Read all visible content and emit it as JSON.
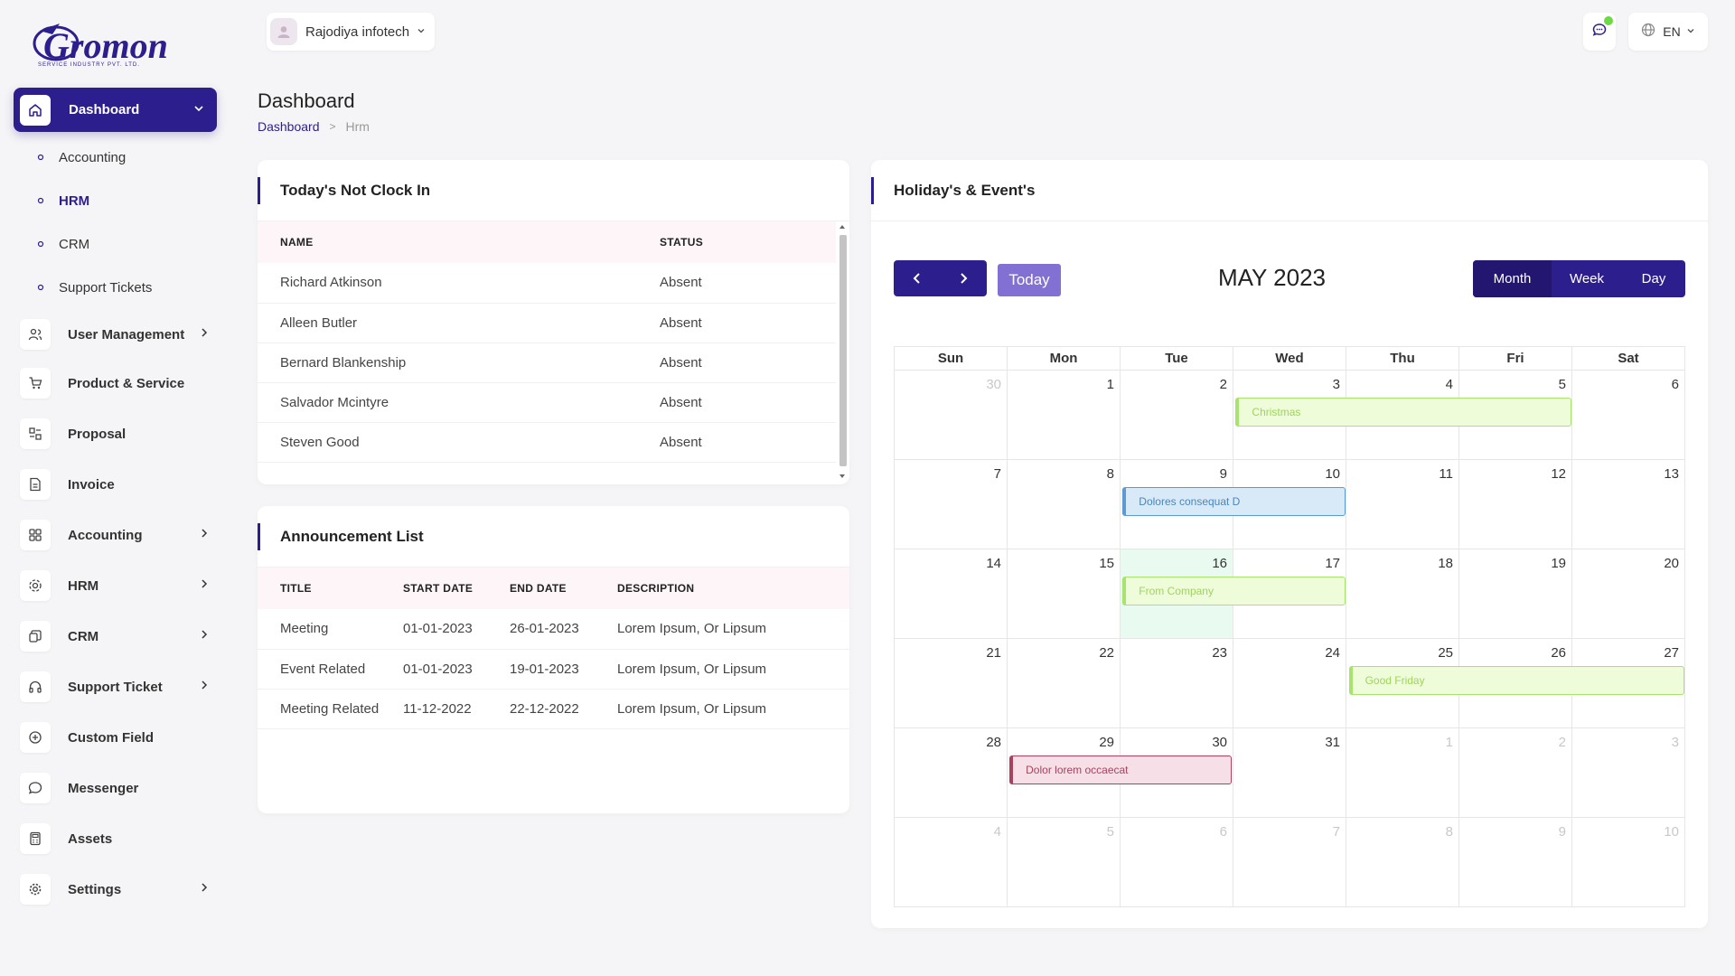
{
  "brand": {
    "logo_text": "Gromon",
    "logo_tagline": "SERVICE INDUSTRY PVT. LTD."
  },
  "header": {
    "company": "Rajodiya infotech",
    "language": "EN"
  },
  "sidebar": {
    "main": {
      "label": "Dashboard"
    },
    "sub_items": [
      {
        "label": "Accounting"
      },
      {
        "label": "HRM"
      },
      {
        "label": "CRM"
      },
      {
        "label": "Support Tickets"
      }
    ],
    "items": [
      {
        "label": "User Management"
      },
      {
        "label": "Product & Service"
      },
      {
        "label": "Proposal"
      },
      {
        "label": "Invoice"
      },
      {
        "label": "Accounting"
      },
      {
        "label": "HRM"
      },
      {
        "label": "CRM"
      },
      {
        "label": "Support Ticket"
      },
      {
        "label": "Custom Field"
      },
      {
        "label": "Messenger"
      },
      {
        "label": "Assets"
      },
      {
        "label": "Settings"
      }
    ]
  },
  "page": {
    "title": "Dashboard",
    "breadcrumb": [
      "Dashboard",
      "Hrm"
    ]
  },
  "not_clock_in": {
    "title": "Today's Not Clock In",
    "columns": [
      "NAME",
      "STATUS"
    ],
    "rows": [
      [
        "Richard Atkinson",
        "Absent"
      ],
      [
        "Alleen Butler",
        "Absent"
      ],
      [
        "Bernard Blankenship",
        "Absent"
      ],
      [
        "Salvador Mcintyre",
        "Absent"
      ],
      [
        "Steven Good",
        "Absent"
      ]
    ]
  },
  "announcements": {
    "title": "Announcement List",
    "columns": [
      "TITLE",
      "START DATE",
      "END DATE",
      "DESCRIPTION"
    ],
    "rows": [
      [
        "Meeting",
        "01-01-2023",
        "26-01-2023",
        "Lorem Ipsum, Or Lipsum"
      ],
      [
        "Event Related",
        "01-01-2023",
        "19-01-2023",
        "Lorem Ipsum, Or Lipsum"
      ],
      [
        "Meeting Related",
        "11-12-2022",
        "22-12-2022",
        "Lorem Ipsum, Or Lipsum"
      ]
    ]
  },
  "calendar": {
    "card_title": "Holiday's & Event's",
    "today_label": "Today",
    "month_title": "MAY 2023",
    "views": [
      "Month",
      "Week",
      "Day"
    ],
    "active_view": "Month",
    "weekdays": [
      "Sun",
      "Mon",
      "Tue",
      "Wed",
      "Thu",
      "Fri",
      "Sat"
    ],
    "weeks": [
      [
        "30",
        "1",
        "2",
        "3",
        "4",
        "5",
        "6"
      ],
      [
        "7",
        "8",
        "9",
        "10",
        "11",
        "12",
        "13"
      ],
      [
        "14",
        "15",
        "16",
        "17",
        "18",
        "19",
        "20"
      ],
      [
        "21",
        "22",
        "23",
        "24",
        "25",
        "26",
        "27"
      ],
      [
        "28",
        "29",
        "30",
        "31",
        "1",
        "2",
        "3"
      ],
      [
        "4",
        "5",
        "6",
        "7",
        "8",
        "9",
        "10"
      ]
    ],
    "events": [
      {
        "title": "Christmas",
        "week": 0,
        "start_day": 3,
        "span_days": 3,
        "color": "green"
      },
      {
        "title": "Dolores consequat D",
        "week": 1,
        "start_day": 2,
        "span_days": 2,
        "color": "blue"
      },
      {
        "title": "From Company",
        "week": 2,
        "start_day": 2,
        "span_days": 2,
        "color": "green"
      },
      {
        "title": "Good Friday",
        "week": 3,
        "start_day": 4,
        "span_days": 3,
        "color": "green"
      },
      {
        "title": "Dolor lorem occaecat",
        "week": 4,
        "start_day": 1,
        "span_days": 2,
        "color": "red"
      }
    ],
    "today_cell": {
      "week": 2,
      "day": 2
    },
    "colors": {
      "primary": "#2d1e8e",
      "today_button": "#8270d3",
      "today_bg": "#e9fbf1"
    }
  }
}
